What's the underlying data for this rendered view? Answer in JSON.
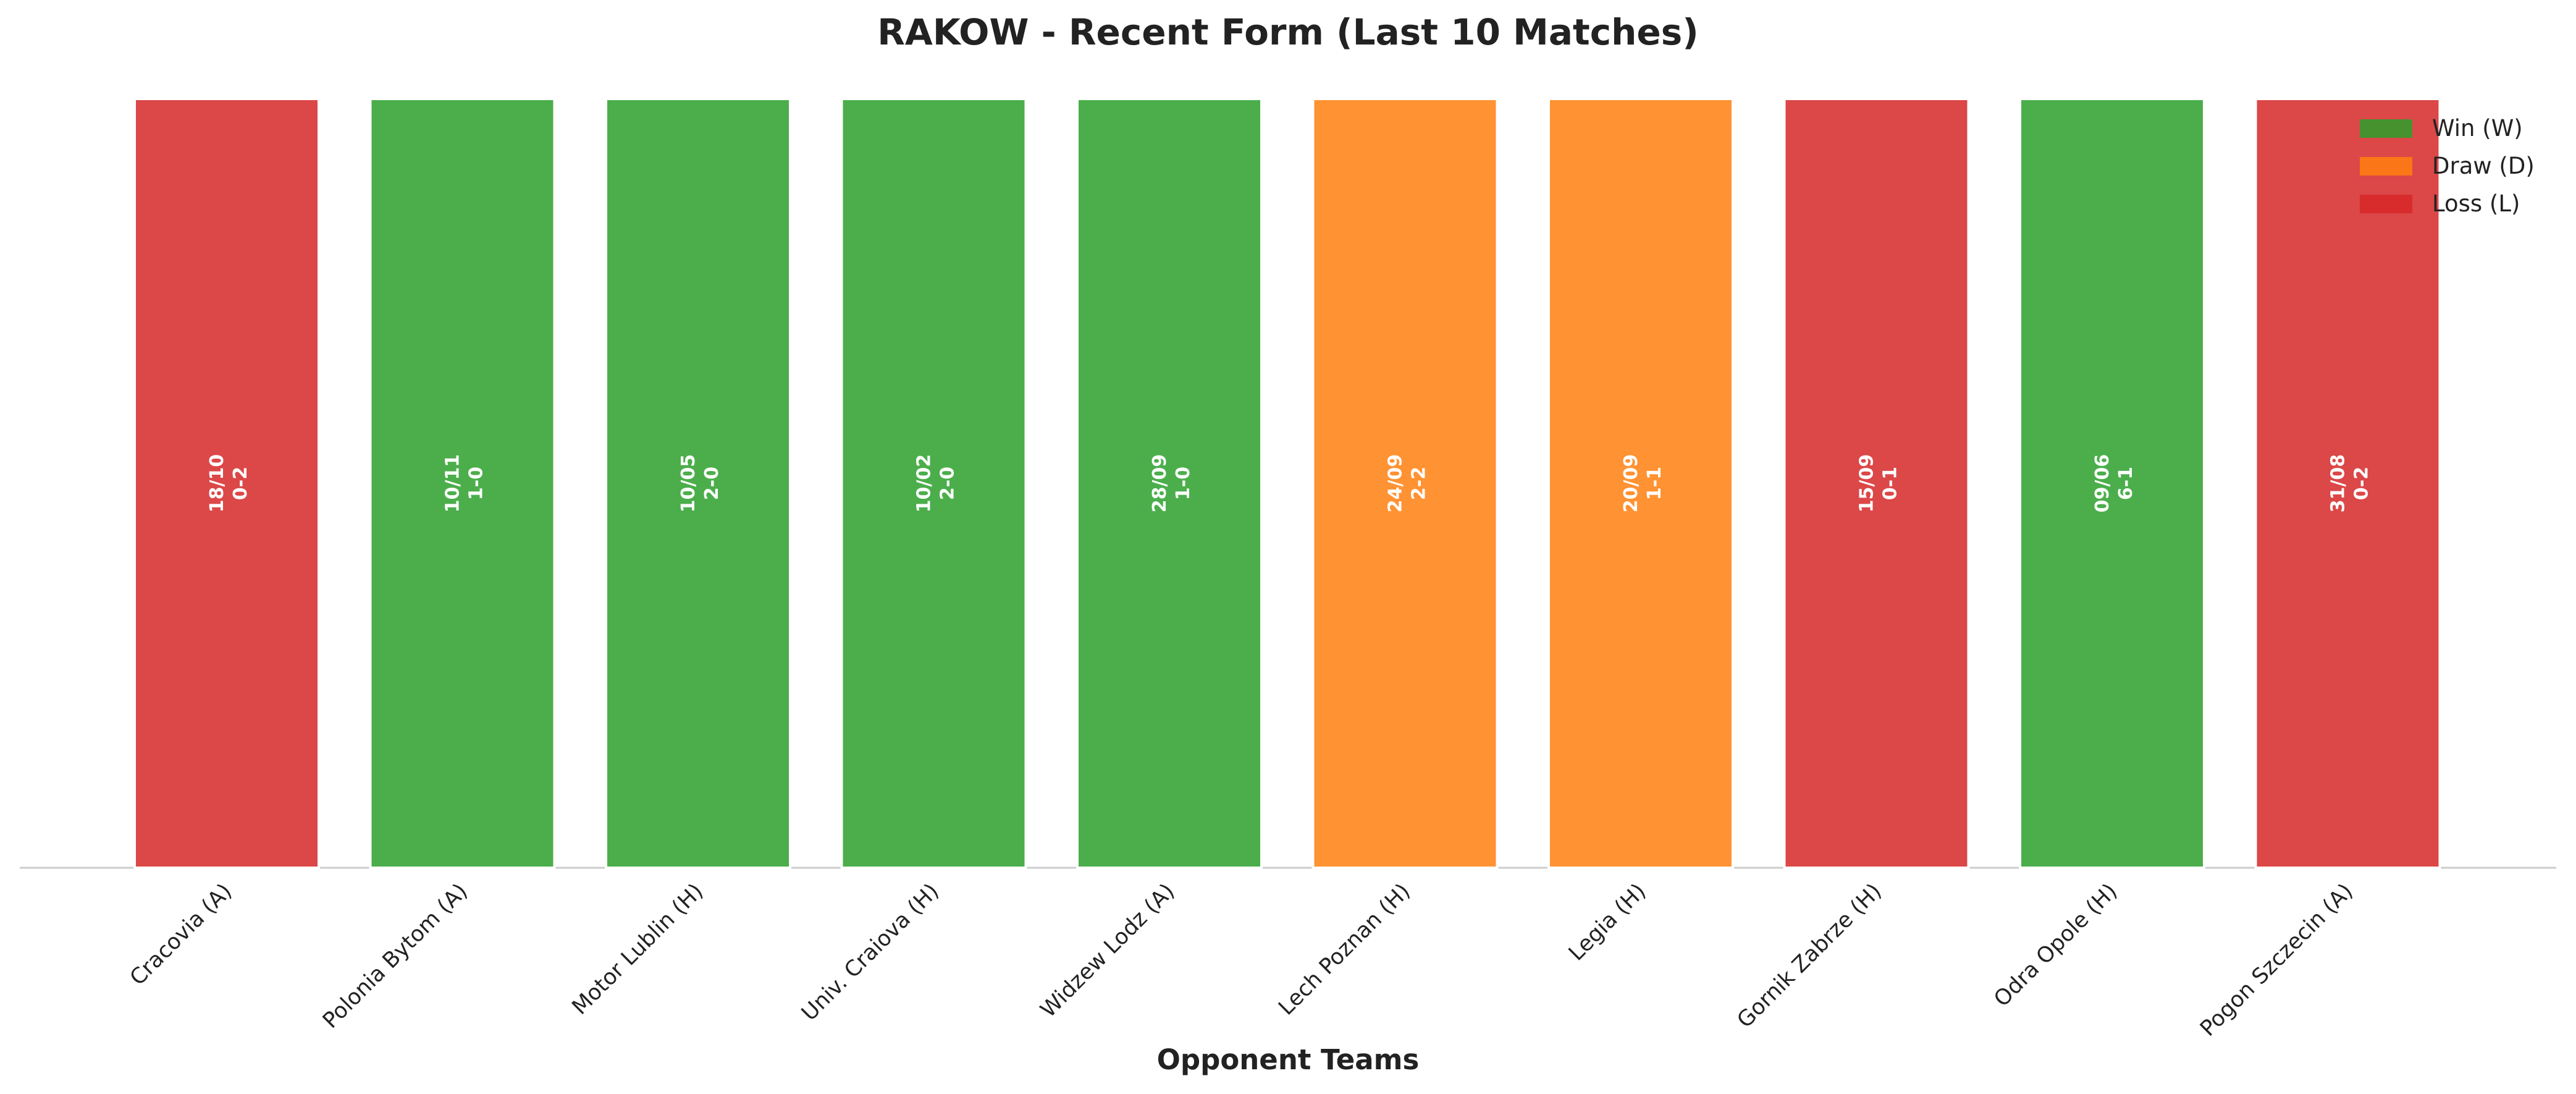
{
  "chart_data": {
    "type": "bar",
    "title": "RAKOW - Recent Form (Last 10 Matches)",
    "x_label": "Opponent Teams",
    "categories": [
      "Cracovia (A)",
      "Polonia Bytom (A)",
      "Motor Lublin (H)",
      "Univ. Craiova (H)",
      "Widzew Lodz (A)",
      "Lech Poznan (H)",
      "Legia (H)",
      "Gornik Zabrze (H)",
      "Odra Opole (H)",
      "Pogon Szczecin (A)"
    ],
    "values": [
      1,
      1,
      1,
      1,
      1,
      1,
      1,
      1,
      1,
      1
    ],
    "dates": [
      "18/10",
      "10/11",
      "10/05",
      "10/02",
      "28/09",
      "24/09",
      "20/09",
      "15/09",
      "09/06",
      "31/08"
    ],
    "scores": [
      "0-2",
      "1-0",
      "2-0",
      "2-0",
      "1-0",
      "2-2",
      "1-1",
      "0-1",
      "6-1",
      "0-2"
    ],
    "colors": [
      "#d62728",
      "#2ca02c",
      "#2ca02c",
      "#2ca02c",
      "#2ca02c",
      "#ff7f0e",
      "#ff7f0e",
      "#d62728",
      "#2ca02c",
      "#d62728"
    ],
    "ylim": [
      0,
      1
    ],
    "legend": [
      {
        "name": "Win (W)",
        "color": "#2ca02c"
      },
      {
        "name": "Draw (D)",
        "color": "#ff7f0e"
      },
      {
        "name": "Loss (L)",
        "color": "#d62728"
      }
    ],
    "legend_position": "upper right"
  }
}
